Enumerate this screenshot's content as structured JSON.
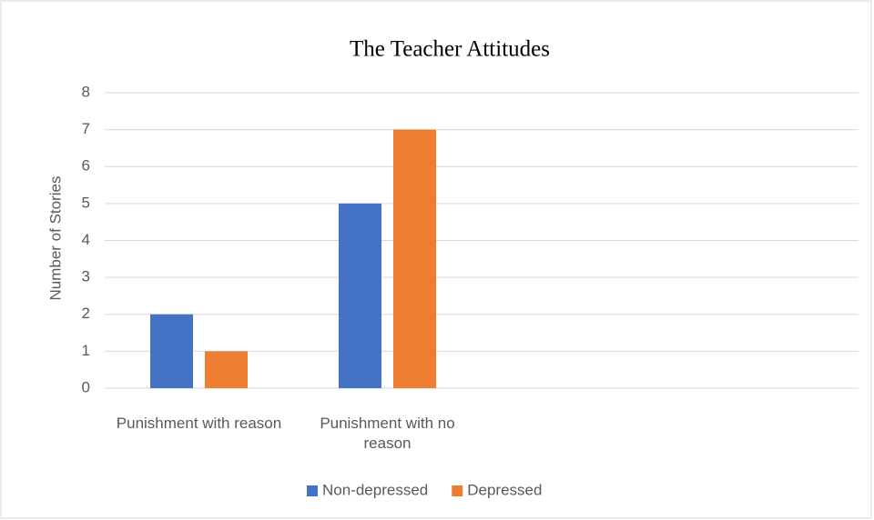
{
  "chart_data": {
    "type": "bar",
    "title": "The Teacher Attitudes",
    "y_label": "Number of Stories",
    "categories": [
      "Punishment with reason",
      "Punishment with no reason",
      null,
      null
    ],
    "series": [
      {
        "name": "Non-depressed",
        "color": "#4472c4",
        "values": [
          2,
          5,
          null,
          null
        ]
      },
      {
        "name": "Depressed",
        "color": "#ed7d31",
        "values": [
          1,
          7,
          null,
          null
        ]
      }
    ],
    "ylim": [
      0,
      8
    ],
    "yticks": [
      0,
      1,
      2,
      3,
      4,
      5,
      6,
      7,
      8
    ],
    "grid": true,
    "legend": "bottom"
  }
}
